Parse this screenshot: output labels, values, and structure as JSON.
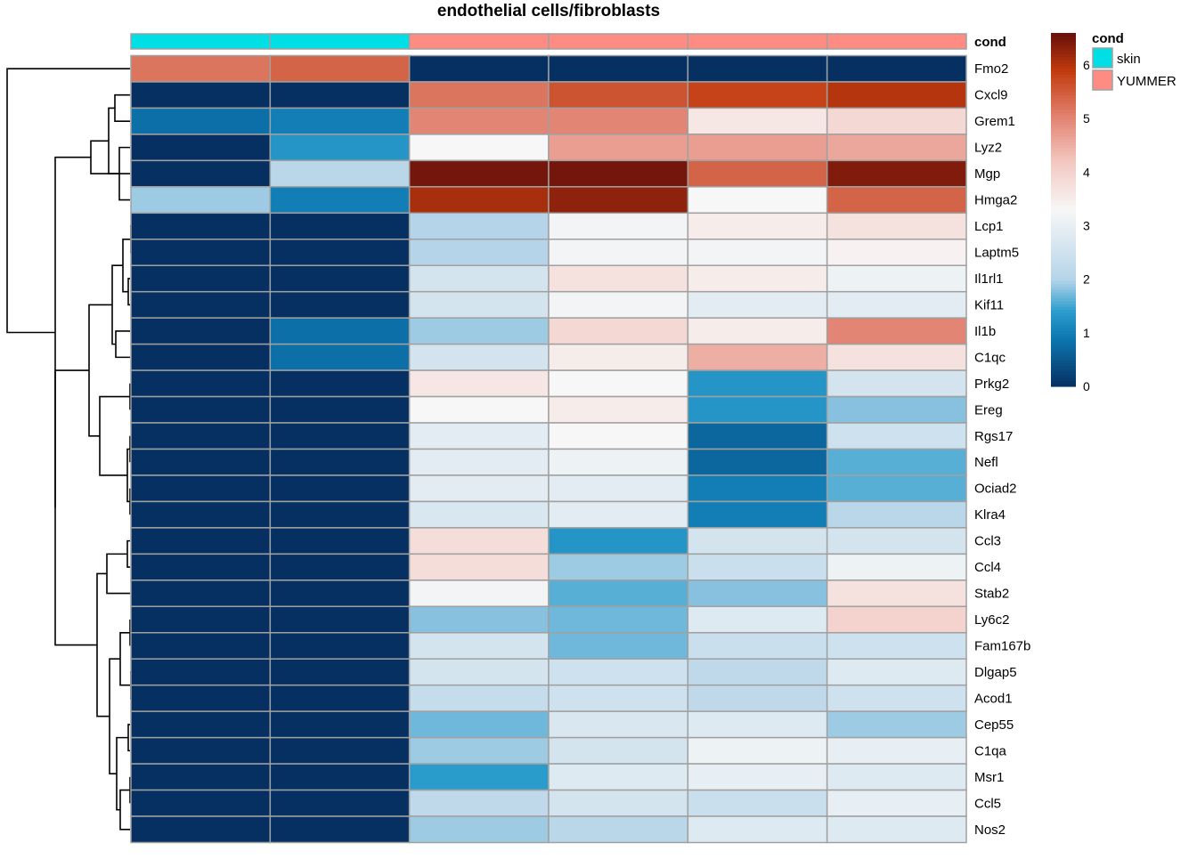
{
  "chart_data": {
    "type": "heatmap",
    "title": "endothelial cells/fibroblasts",
    "annotation": {
      "label": "cond",
      "values": [
        "skin",
        "skin",
        "YUMMER",
        "YUMMER",
        "YUMMER",
        "YUMMER"
      ]
    },
    "rows": [
      "Fmo2",
      "Cxcl9",
      "Grem1",
      "Lyz2",
      "Mgp",
      "Hmga2",
      "Lcp1",
      "Laptm5",
      "Il1rl1",
      "Kif11",
      "Il1b",
      "C1qc",
      "Prkg2",
      "Ereg",
      "Rgs17",
      "Nefl",
      "Ociad2",
      "Klra4",
      "Ccl3",
      "Ccl4",
      "Stab2",
      "Ly6c2",
      "Fam167b",
      "Dlgap5",
      "Acod1",
      "Cep55",
      "C1qa",
      "Msr1",
      "Ccl5",
      "Nos2"
    ],
    "values": [
      [
        5.2,
        5.4,
        0.0,
        0.0,
        0.0,
        0.0
      ],
      [
        0.0,
        0.0,
        5.2,
        5.6,
        5.8,
        6.0
      ],
      [
        0.8,
        1.0,
        5.0,
        5.0,
        3.6,
        3.9
      ],
      [
        0.0,
        1.3,
        3.3,
        4.7,
        4.7,
        4.6
      ],
      [
        0.0,
        2.1,
        6.5,
        6.5,
        5.4,
        6.4
      ],
      [
        1.9,
        1.0,
        6.1,
        6.3,
        3.3,
        5.4
      ],
      [
        0.0,
        0.0,
        2.0,
        3.2,
        3.5,
        3.7
      ],
      [
        0.0,
        0.0,
        2.0,
        3.2,
        3.2,
        3.4
      ],
      [
        0.0,
        0.0,
        2.6,
        3.7,
        3.5,
        3.1
      ],
      [
        0.0,
        0.0,
        2.6,
        3.2,
        2.9,
        2.9
      ],
      [
        0.0,
        0.8,
        1.9,
        3.9,
        3.5,
        5.0
      ],
      [
        0.0,
        0.8,
        2.6,
        3.5,
        4.5,
        3.7
      ],
      [
        0.0,
        0.0,
        3.6,
        3.3,
        1.3,
        2.6
      ],
      [
        0.0,
        0.0,
        3.3,
        3.5,
        1.3,
        1.8
      ],
      [
        0.0,
        0.0,
        2.9,
        3.3,
        0.7,
        2.5
      ],
      [
        0.0,
        0.0,
        2.9,
        3.1,
        0.7,
        1.6
      ],
      [
        0.0,
        0.0,
        2.9,
        2.9,
        1.0,
        1.6
      ],
      [
        0.0,
        0.0,
        2.7,
        2.9,
        1.0,
        2.1
      ],
      [
        0.0,
        0.0,
        3.8,
        1.3,
        2.6,
        2.6
      ],
      [
        0.0,
        0.0,
        3.8,
        1.9,
        2.4,
        3.1
      ],
      [
        0.0,
        0.0,
        3.2,
        1.6,
        1.8,
        3.7
      ],
      [
        0.0,
        0.0,
        1.8,
        1.7,
        2.8,
        4.0
      ],
      [
        0.0,
        0.0,
        2.6,
        1.7,
        2.4,
        2.5
      ],
      [
        0.0,
        0.0,
        2.6,
        2.5,
        2.2,
        2.8
      ],
      [
        0.0,
        0.0,
        2.3,
        2.5,
        2.2,
        2.5
      ],
      [
        0.0,
        0.0,
        1.7,
        2.7,
        2.8,
        1.9
      ],
      [
        0.0,
        0.0,
        1.9,
        2.6,
        3.1,
        3.0
      ],
      [
        0.0,
        0.0,
        1.4,
        2.8,
        3.0,
        2.8
      ],
      [
        0.0,
        0.0,
        2.2,
        2.6,
        2.4,
        3.0
      ],
      [
        0.0,
        0.0,
        1.9,
        2.1,
        2.8,
        2.8
      ]
    ],
    "color_scale": {
      "min": 0,
      "max": 6.6,
      "ticks": [
        0,
        1,
        2,
        3,
        4,
        5,
        6
      ],
      "stops": [
        {
          "v": 0.0,
          "c": "#053061"
        },
        {
          "v": 0.9,
          "c": "#0d77b0"
        },
        {
          "v": 1.4,
          "c": "#2a9ccc"
        },
        {
          "v": 2.0,
          "c": "#b5d4e9"
        },
        {
          "v": 3.3,
          "c": "#f7f7f7"
        },
        {
          "v": 4.2,
          "c": "#f3c8c1"
        },
        {
          "v": 5.0,
          "c": "#e38574"
        },
        {
          "v": 5.9,
          "c": "#c23b0e"
        },
        {
          "v": 6.6,
          "c": "#67100b"
        }
      ]
    },
    "legend": {
      "title": "cond",
      "entries": [
        {
          "label": "skin",
          "color": "#00dfe5"
        },
        {
          "label": "YUMMER",
          "color": "#ff8c82"
        }
      ]
    },
    "cell_border_color": "#a0a0a0"
  }
}
